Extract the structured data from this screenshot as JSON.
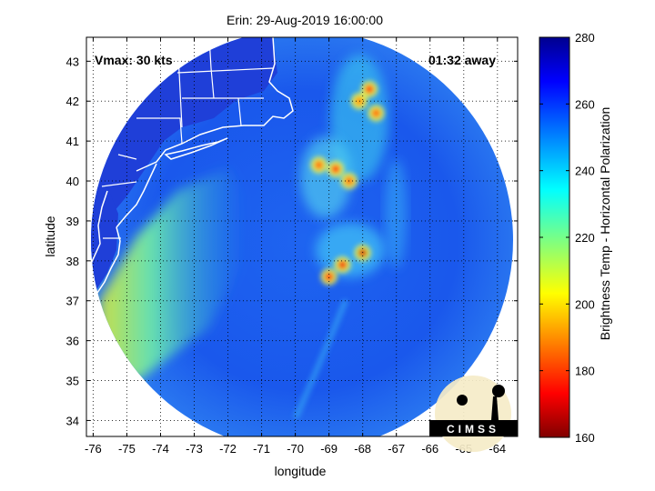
{
  "chart_data": {
    "type": "heatmap",
    "title": "Erin: 29-Aug-2019 16:00:00",
    "xlabel": "longitude",
    "ylabel": "latitude",
    "xlim": [
      -76.2,
      -63.4
    ],
    "ylim": [
      33.6,
      43.6
    ],
    "x_ticks": [
      "-76",
      "-75",
      "-74",
      "-73",
      "-72",
      "-71",
      "-70",
      "-69",
      "-68",
      "-67",
      "-66",
      "-65",
      "-64"
    ],
    "y_ticks": [
      "34",
      "35",
      "36",
      "37",
      "38",
      "39",
      "40",
      "41",
      "42",
      "43"
    ],
    "grid": true,
    "annotations": {
      "vmax": "Vmax: 30 kts",
      "time_away": "01:32 away"
    },
    "colorbar": {
      "label": "Brightness Temp - Horizontal Polarization",
      "min": 160,
      "max": 280,
      "ticks": [
        "160",
        "180",
        "200",
        "220",
        "240",
        "260",
        "280"
      ],
      "colormap": "jet"
    },
    "swath": {
      "center_lon": -69.8,
      "center_lat": 38.5,
      "background_temp_range": [
        245,
        270
      ],
      "coastal_band_temp_range": [
        215,
        235
      ]
    },
    "cold_cores": [
      {
        "lon": -68.0,
        "lat": 38.2,
        "temp": 168
      },
      {
        "lon": -68.6,
        "lat": 37.9,
        "temp": 172
      },
      {
        "lon": -69.0,
        "lat": 37.6,
        "temp": 175
      },
      {
        "lon": -69.3,
        "lat": 40.4,
        "temp": 185
      },
      {
        "lon": -68.8,
        "lat": 40.3,
        "temp": 178
      },
      {
        "lon": -68.4,
        "lat": 40.0,
        "temp": 185
      },
      {
        "lon": -67.8,
        "lat": 42.3,
        "temp": 178
      },
      {
        "lon": -68.1,
        "lat": 42.0,
        "temp": 190
      },
      {
        "lon": -67.6,
        "lat": 41.7,
        "temp": 185
      }
    ]
  },
  "logo": {
    "text": "CIMSS"
  }
}
